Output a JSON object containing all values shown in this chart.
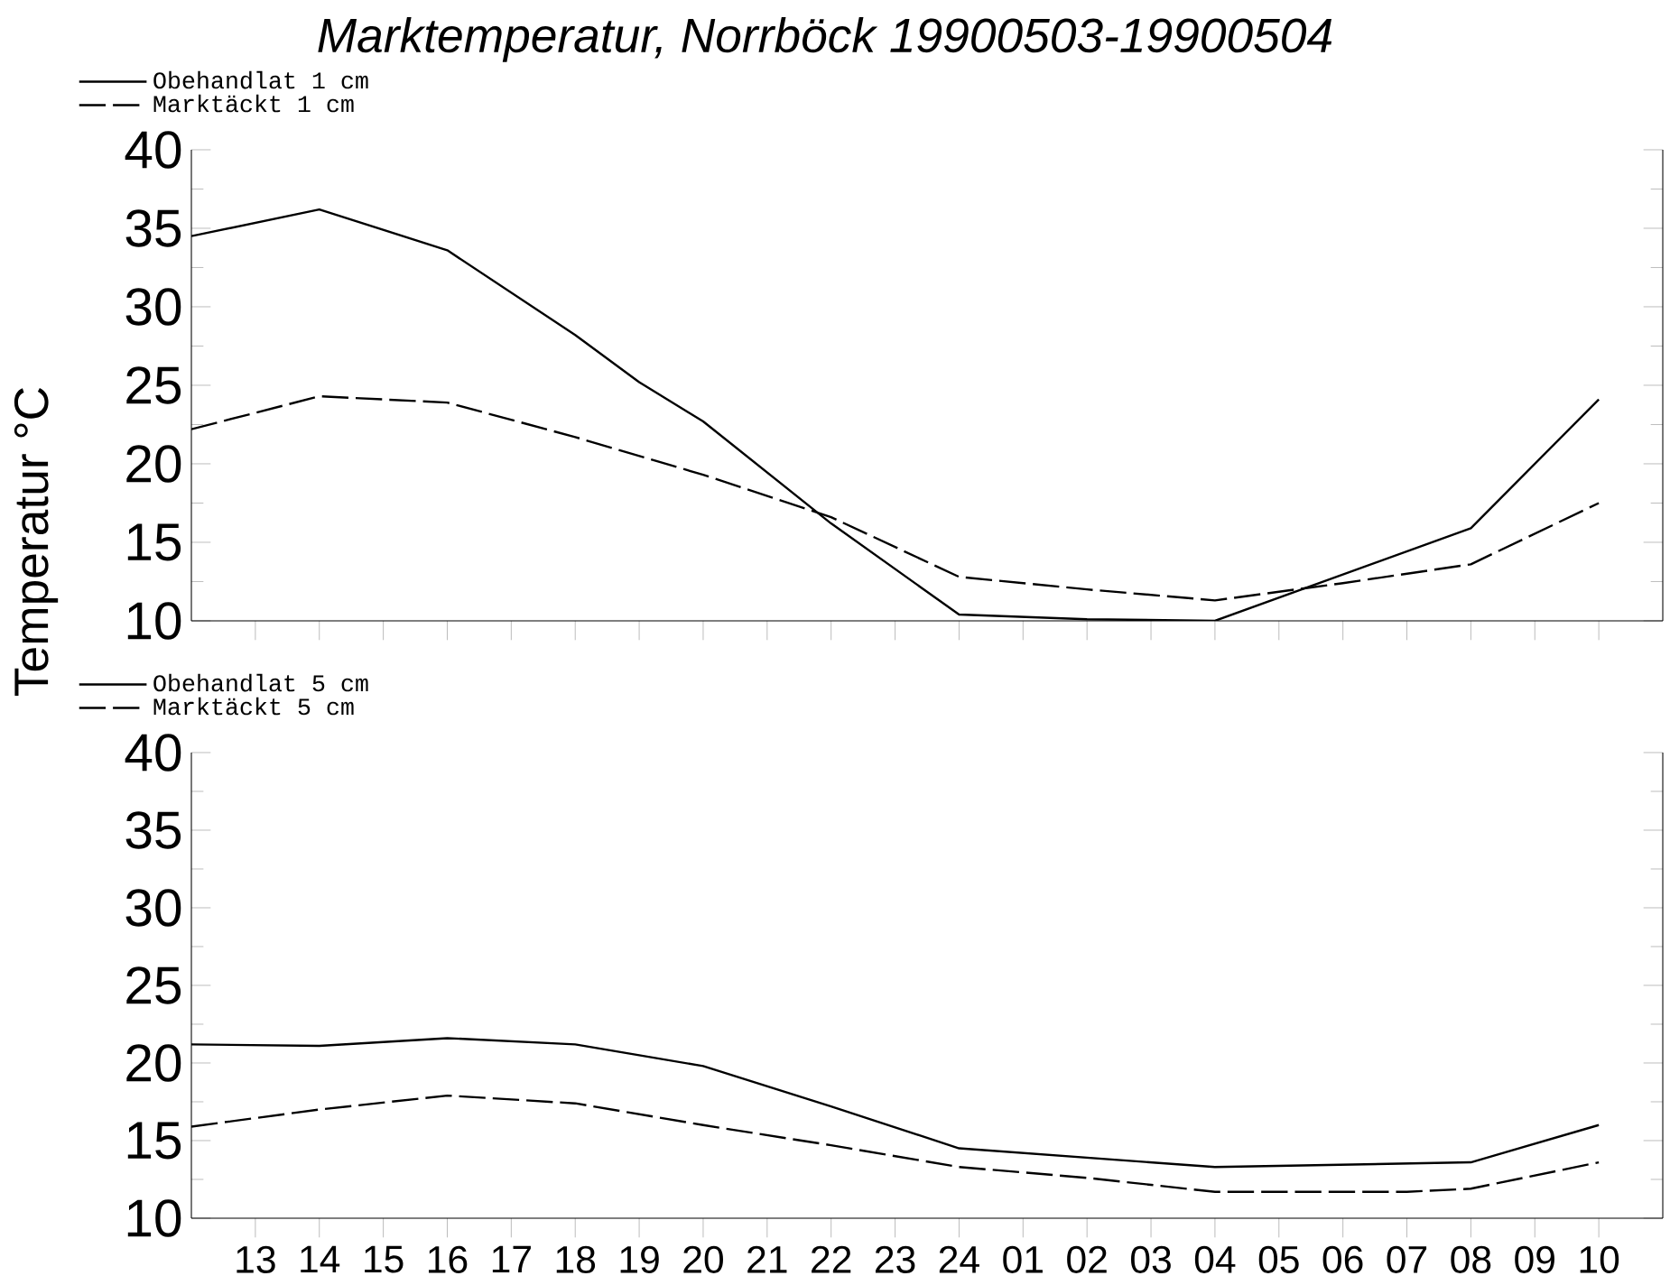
{
  "chart_data": [
    {
      "type": "line",
      "title": "Marktemperatur, Norrböck 19900503-19900504",
      "ylabel": "Temperatur °C",
      "xlim": [
        "1990-05-03T12:00",
        "1990-05-04T11:00"
      ],
      "ylim": [
        10,
        40
      ],
      "yticks": [
        10,
        15,
        20,
        25,
        30,
        35,
        40
      ],
      "xticks": [
        {
          "value": "1990-05-03T13:00",
          "label": null
        },
        {
          "value": "1990-05-03T14:00",
          "label": null
        },
        {
          "value": "1990-05-03T15:00",
          "label": null
        },
        {
          "value": "1990-05-03T16:00",
          "label": null
        },
        {
          "value": "1990-05-03T17:00",
          "label": null
        },
        {
          "value": "1990-05-03T18:00",
          "label": null
        },
        {
          "value": "1990-05-03T19:00",
          "label": null
        },
        {
          "value": "1990-05-03T20:00",
          "label": null
        },
        {
          "value": "1990-05-03T21:00",
          "label": null
        },
        {
          "value": "1990-05-03T22:00",
          "label": null
        },
        {
          "value": "1990-05-03T23:00",
          "label": null
        },
        {
          "value": "1990-05-04T00:00",
          "label": null
        },
        {
          "value": "1990-05-04T01:00",
          "label": null
        },
        {
          "value": "1990-05-04T02:00",
          "label": null
        },
        {
          "value": "1990-05-04T03:00",
          "label": null
        },
        {
          "value": "1990-05-04T04:00",
          "label": null
        },
        {
          "value": "1990-05-04T05:00",
          "label": null
        },
        {
          "value": "1990-05-04T06:00",
          "label": null
        },
        {
          "value": "1990-05-04T07:00",
          "label": null
        },
        {
          "value": "1990-05-04T08:00",
          "label": null
        },
        {
          "value": "1990-05-04T09:00",
          "label": null
        },
        {
          "value": "1990-05-04T10:00",
          "label": null
        }
      ],
      "tick_labels": "y",
      "legend": "top left",
      "series": [
        {
          "name": "Obehandlat   1 cm",
          "color": "#000000",
          "line_style": "solid",
          "x": [
            "1990-05-03T12:00",
            "1990-05-03T14:00",
            "1990-05-03T16:00",
            "1990-05-03T18:00",
            "1990-05-03T19:00",
            "1990-05-03T20:00",
            "1990-05-03T22:00",
            "1990-05-04T00:00",
            "1990-05-04T02:00",
            "1990-05-04T04:00",
            "1990-05-04T08:00",
            "1990-05-04T10:00"
          ],
          "values": [
            34.5,
            36.2,
            33.6,
            28.2,
            25.2,
            22.7,
            16.2,
            10.4,
            10.1,
            10.0,
            15.9,
            24.1
          ]
        },
        {
          "name": "Marktäckt   1 cm",
          "color": "#000000",
          "line_style": "dashed",
          "x": [
            "1990-05-03T12:00",
            "1990-05-03T14:00",
            "1990-05-03T16:00",
            "1990-05-03T18:00",
            "1990-05-03T20:00",
            "1990-05-03T22:00",
            "1990-05-04T00:00",
            "1990-05-04T02:00",
            "1990-05-04T04:00",
            "1990-05-04T06:00",
            "1990-05-04T08:00",
            "1990-05-04T10:00"
          ],
          "values": [
            22.2,
            24.3,
            23.9,
            21.7,
            19.3,
            16.6,
            12.8,
            12.0,
            11.3,
            12.4,
            13.6,
            17.5
          ]
        }
      ]
    },
    {
      "type": "line",
      "xlim": [
        "1990-05-03T12:00",
        "1990-05-04T11:00"
      ],
      "ylim": [
        10,
        40
      ],
      "yticks": [
        10,
        15,
        20,
        25,
        30,
        35,
        40
      ],
      "xticks": [
        {
          "value": "1990-05-03T13:00",
          "label": "13"
        },
        {
          "value": "1990-05-03T14:00",
          "label": "14"
        },
        {
          "value": "1990-05-03T15:00",
          "label": "15"
        },
        {
          "value": "1990-05-03T16:00",
          "label": "16"
        },
        {
          "value": "1990-05-03T17:00",
          "label": "17"
        },
        {
          "value": "1990-05-03T18:00",
          "label": "18"
        },
        {
          "value": "1990-05-03T19:00",
          "label": "19"
        },
        {
          "value": "1990-05-03T20:00",
          "label": "20"
        },
        {
          "value": "1990-05-03T21:00",
          "label": "21"
        },
        {
          "value": "1990-05-03T22:00",
          "label": "22"
        },
        {
          "value": "1990-05-03T23:00",
          "label": "23"
        },
        {
          "value": "1990-05-04T00:00",
          "label": "24"
        },
        {
          "value": "1990-05-04T01:00",
          "label": "01"
        },
        {
          "value": "1990-05-04T02:00",
          "label": "02"
        },
        {
          "value": "1990-05-04T03:00",
          "label": "03"
        },
        {
          "value": "1990-05-04T04:00",
          "label": "04"
        },
        {
          "value": "1990-05-04T05:00",
          "label": "05"
        },
        {
          "value": "1990-05-04T06:00",
          "label": "06"
        },
        {
          "value": "1990-05-04T07:00",
          "label": "07"
        },
        {
          "value": "1990-05-04T08:00",
          "label": "08"
        },
        {
          "value": "1990-05-04T09:00",
          "label": "09"
        },
        {
          "value": "1990-05-04T10:00",
          "label": "10"
        }
      ],
      "legend": "top left",
      "series": [
        {
          "name": "Obehandlat   5 cm",
          "color": "#000000",
          "line_style": "solid",
          "x": [
            "1990-05-03T12:00",
            "1990-05-03T14:00",
            "1990-05-03T16:00",
            "1990-05-03T18:00",
            "1990-05-03T19:00",
            "1990-05-03T20:00",
            "1990-05-03T22:00",
            "1990-05-04T00:00",
            "1990-05-04T04:00",
            "1990-05-04T08:00",
            "1990-05-04T10:00"
          ],
          "values": [
            21.2,
            21.1,
            21.6,
            21.2,
            20.5,
            19.8,
            17.2,
            14.5,
            13.3,
            13.6,
            16.0
          ]
        },
        {
          "name": "Marktäckt   5 cm",
          "color": "#000000",
          "line_style": "dashed",
          "x": [
            "1990-05-03T12:00",
            "1990-05-03T14:00",
            "1990-05-03T16:00",
            "1990-05-03T18:00",
            "1990-05-03T20:00",
            "1990-05-03T22:00",
            "1990-05-04T00:00",
            "1990-05-04T02:00",
            "1990-05-04T04:00",
            "1990-05-04T07:00",
            "1990-05-04T08:00",
            "1990-05-04T10:00"
          ],
          "values": [
            15.9,
            17.0,
            17.9,
            17.4,
            16.0,
            14.7,
            13.3,
            12.6,
            11.7,
            11.7,
            11.9,
            13.6
          ]
        }
      ]
    }
  ]
}
